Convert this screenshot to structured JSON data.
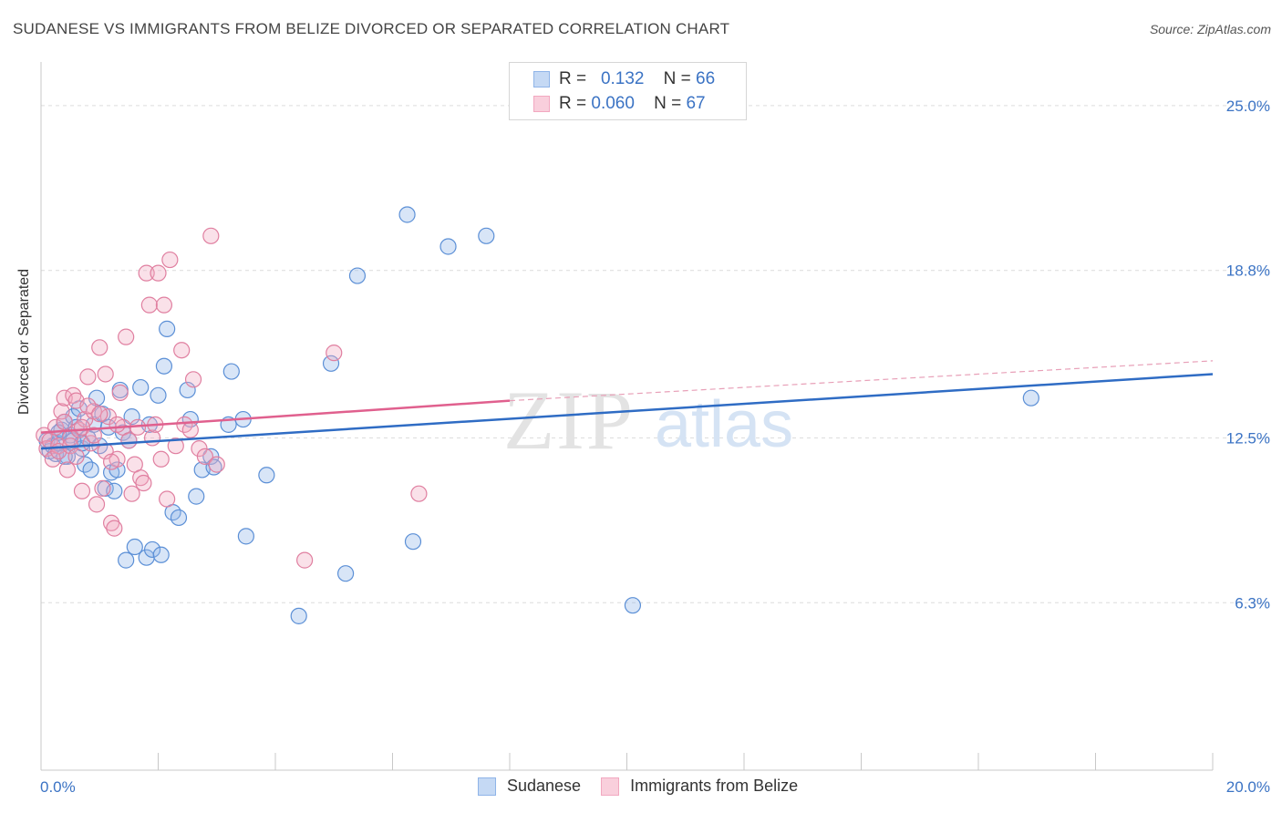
{
  "title": "SUDANESE VS IMMIGRANTS FROM BELIZE DIVORCED OR SEPARATED CORRELATION CHART",
  "source": "Source: ZipAtlas.com",
  "watermark": {
    "part1": "ZIP",
    "part2": "atlas"
  },
  "legend": {
    "rows": [
      {
        "r_label": "R =",
        "r_value": "0.132",
        "n_label": "N =",
        "n_value": "66",
        "color": "#8fb4e8"
      },
      {
        "r_label": "R =",
        "r_value": "0.060",
        "n_label": "N =",
        "n_value": "67",
        "color": "#f2a8c0"
      }
    ]
  },
  "chart_data": {
    "type": "scatter",
    "title": "SUDANESE VS IMMIGRANTS FROM BELIZE DIVORCED OR SEPARATED CORRELATION CHART",
    "xlabel": "",
    "ylabel": "Divorced or Separated",
    "xlim": [
      0,
      20
    ],
    "ylim": [
      0,
      26.3
    ],
    "x_tick_labels": [
      "0.0%",
      "20.0%"
    ],
    "y_ticks": [
      6.3,
      12.5,
      18.8,
      25.0
    ],
    "y_tick_labels": [
      "6.3%",
      "12.5%",
      "18.8%",
      "25.0%"
    ],
    "grid": "horizontal dashed",
    "legend_position": "top-center",
    "series": [
      {
        "name": "Sudanese",
        "color": "#8fb4e8",
        "stroke": "#5b8fd6",
        "trend": {
          "x": [
            0,
            20
          ],
          "y": [
            12.1,
            14.9
          ],
          "color": "#2f6cc4"
        },
        "points": [
          [
            0.1,
            12.4
          ],
          [
            0.15,
            12.0
          ],
          [
            0.2,
            12.2
          ],
          [
            0.25,
            11.9
          ],
          [
            0.3,
            12.3
          ],
          [
            0.35,
            12.8
          ],
          [
            0.4,
            13.1
          ],
          [
            0.45,
            11.8
          ],
          [
            0.5,
            12.6
          ],
          [
            0.55,
            13.3
          ],
          [
            0.6,
            12.9
          ],
          [
            0.65,
            13.6
          ],
          [
            0.7,
            12.1
          ],
          [
            0.75,
            11.5
          ],
          [
            0.8,
            12.5
          ],
          [
            0.85,
            11.3
          ],
          [
            0.9,
            13.0
          ],
          [
            0.95,
            14.0
          ],
          [
            1.0,
            12.2
          ],
          [
            1.05,
            13.4
          ],
          [
            1.1,
            10.6
          ],
          [
            1.15,
            12.9
          ],
          [
            1.2,
            11.2
          ],
          [
            1.25,
            10.5
          ],
          [
            1.3,
            11.3
          ],
          [
            1.35,
            14.3
          ],
          [
            1.4,
            12.7
          ],
          [
            1.45,
            7.9
          ],
          [
            1.5,
            12.4
          ],
          [
            1.55,
            13.3
          ],
          [
            1.6,
            8.4
          ],
          [
            1.7,
            14.4
          ],
          [
            1.8,
            8.0
          ],
          [
            1.85,
            13.0
          ],
          [
            1.9,
            8.3
          ],
          [
            2.0,
            14.1
          ],
          [
            2.05,
            8.1
          ],
          [
            2.1,
            15.2
          ],
          [
            2.15,
            16.6
          ],
          [
            2.25,
            9.7
          ],
          [
            2.35,
            9.5
          ],
          [
            2.5,
            14.3
          ],
          [
            2.55,
            13.2
          ],
          [
            2.65,
            10.3
          ],
          [
            2.75,
            11.3
          ],
          [
            2.9,
            11.8
          ],
          [
            2.95,
            11.4
          ],
          [
            3.2,
            13.0
          ],
          [
            3.25,
            15.0
          ],
          [
            3.45,
            13.2
          ],
          [
            3.5,
            8.8
          ],
          [
            3.85,
            11.1
          ],
          [
            4.4,
            5.8
          ],
          [
            4.95,
            15.3
          ],
          [
            5.2,
            7.4
          ],
          [
            5.4,
            18.6
          ],
          [
            6.25,
            20.9
          ],
          [
            6.35,
            8.6
          ],
          [
            6.95,
            19.7
          ],
          [
            7.6,
            20.1
          ],
          [
            10.1,
            6.2
          ],
          [
            16.9,
            14.0
          ],
          [
            0.55,
            12.4
          ],
          [
            0.3,
            12.7
          ],
          [
            0.4,
            11.8
          ],
          [
            0.7,
            12.3
          ]
        ]
      },
      {
        "name": "Immigrants from Belize",
        "color": "#f2a8c0",
        "stroke": "#e07fa0",
        "trend": {
          "x": [
            0,
            8
          ],
          "y": [
            12.7,
            13.9
          ],
          "color": "#e0608e"
        },
        "trend_dashed": {
          "x": [
            8,
            20
          ],
          "y": [
            13.9,
            15.4
          ],
          "color": "#e8a0b8"
        },
        "points": [
          [
            0.05,
            12.6
          ],
          [
            0.1,
            12.1
          ],
          [
            0.15,
            12.4
          ],
          [
            0.2,
            11.7
          ],
          [
            0.25,
            12.9
          ],
          [
            0.3,
            12.2
          ],
          [
            0.35,
            13.5
          ],
          [
            0.4,
            14.0
          ],
          [
            0.45,
            11.3
          ],
          [
            0.5,
            12.5
          ],
          [
            0.55,
            14.1
          ],
          [
            0.6,
            13.9
          ],
          [
            0.65,
            12.8
          ],
          [
            0.7,
            10.5
          ],
          [
            0.75,
            13.2
          ],
          [
            0.8,
            14.8
          ],
          [
            0.85,
            12.3
          ],
          [
            0.9,
            13.5
          ],
          [
            0.95,
            10.0
          ],
          [
            1.0,
            15.9
          ],
          [
            1.05,
            10.6
          ],
          [
            1.1,
            14.9
          ],
          [
            1.15,
            13.3
          ],
          [
            1.2,
            9.3
          ],
          [
            1.25,
            9.1
          ],
          [
            1.3,
            11.7
          ],
          [
            1.35,
            14.2
          ],
          [
            1.4,
            12.9
          ],
          [
            1.45,
            16.3
          ],
          [
            1.5,
            12.4
          ],
          [
            1.55,
            10.4
          ],
          [
            1.6,
            11.5
          ],
          [
            1.65,
            12.9
          ],
          [
            1.7,
            11.0
          ],
          [
            1.75,
            10.8
          ],
          [
            1.8,
            18.7
          ],
          [
            1.85,
            17.5
          ],
          [
            1.9,
            12.5
          ],
          [
            1.95,
            13.0
          ],
          [
            2.0,
            18.7
          ],
          [
            2.05,
            11.7
          ],
          [
            2.1,
            17.5
          ],
          [
            2.15,
            10.2
          ],
          [
            2.2,
            19.2
          ],
          [
            2.3,
            12.2
          ],
          [
            2.4,
            15.8
          ],
          [
            2.45,
            13.0
          ],
          [
            2.55,
            12.8
          ],
          [
            2.6,
            14.7
          ],
          [
            2.7,
            12.1
          ],
          [
            2.8,
            11.8
          ],
          [
            2.9,
            20.1
          ],
          [
            3.0,
            11.5
          ],
          [
            4.5,
            7.9
          ],
          [
            5.0,
            15.7
          ],
          [
            6.45,
            10.4
          ],
          [
            0.3,
            12.0
          ],
          [
            0.4,
            13.1
          ],
          [
            0.5,
            12.2
          ],
          [
            0.6,
            11.8
          ],
          [
            0.7,
            12.9
          ],
          [
            0.8,
            13.7
          ],
          [
            0.9,
            12.6
          ],
          [
            1.0,
            13.4
          ],
          [
            1.1,
            12.0
          ],
          [
            1.2,
            11.6
          ],
          [
            1.3,
            13.0
          ]
        ]
      }
    ]
  }
}
